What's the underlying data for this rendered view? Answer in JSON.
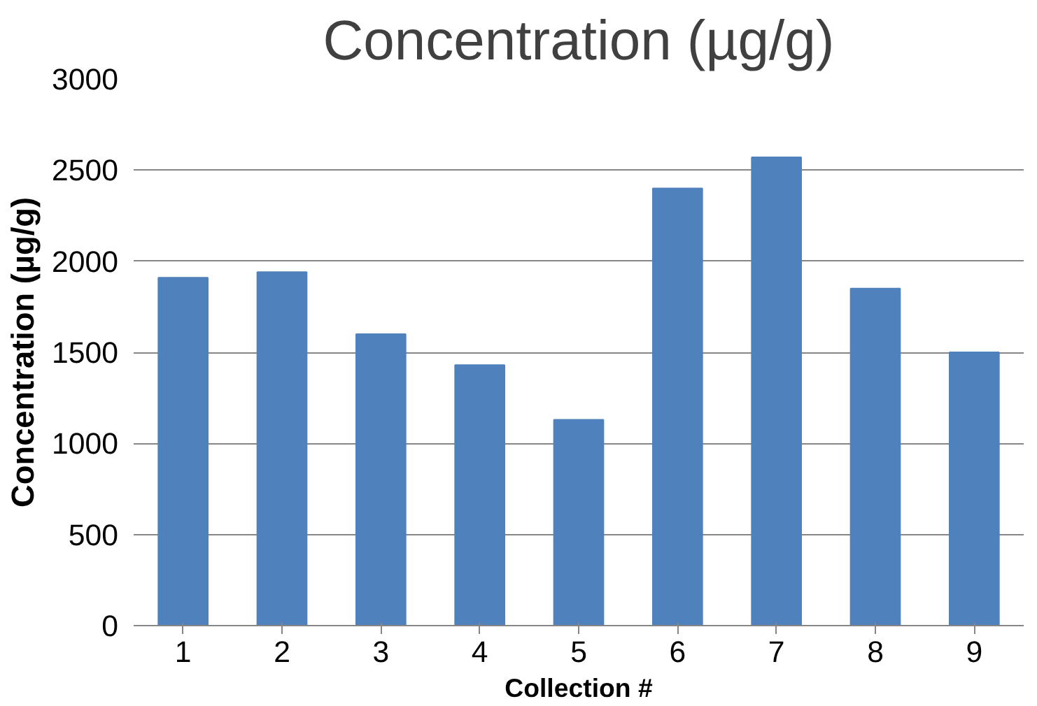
{
  "chart_data": {
    "type": "bar",
    "title": "Concentration (µg/g)",
    "xlabel": "Collection #",
    "ylabel": "Concentration (µg/g)",
    "categories": [
      "1",
      "2",
      "3",
      "4",
      "5",
      "6",
      "7",
      "8",
      "9"
    ],
    "values": [
      1910,
      1940,
      1600,
      1430,
      1130,
      2400,
      2570,
      1850,
      1500
    ],
    "color": "#4f81bd",
    "ylim": [
      0,
      3000
    ],
    "yticks": [
      0,
      500,
      1000,
      1500,
      2000,
      2500,
      3000
    ],
    "grid": "y"
  }
}
